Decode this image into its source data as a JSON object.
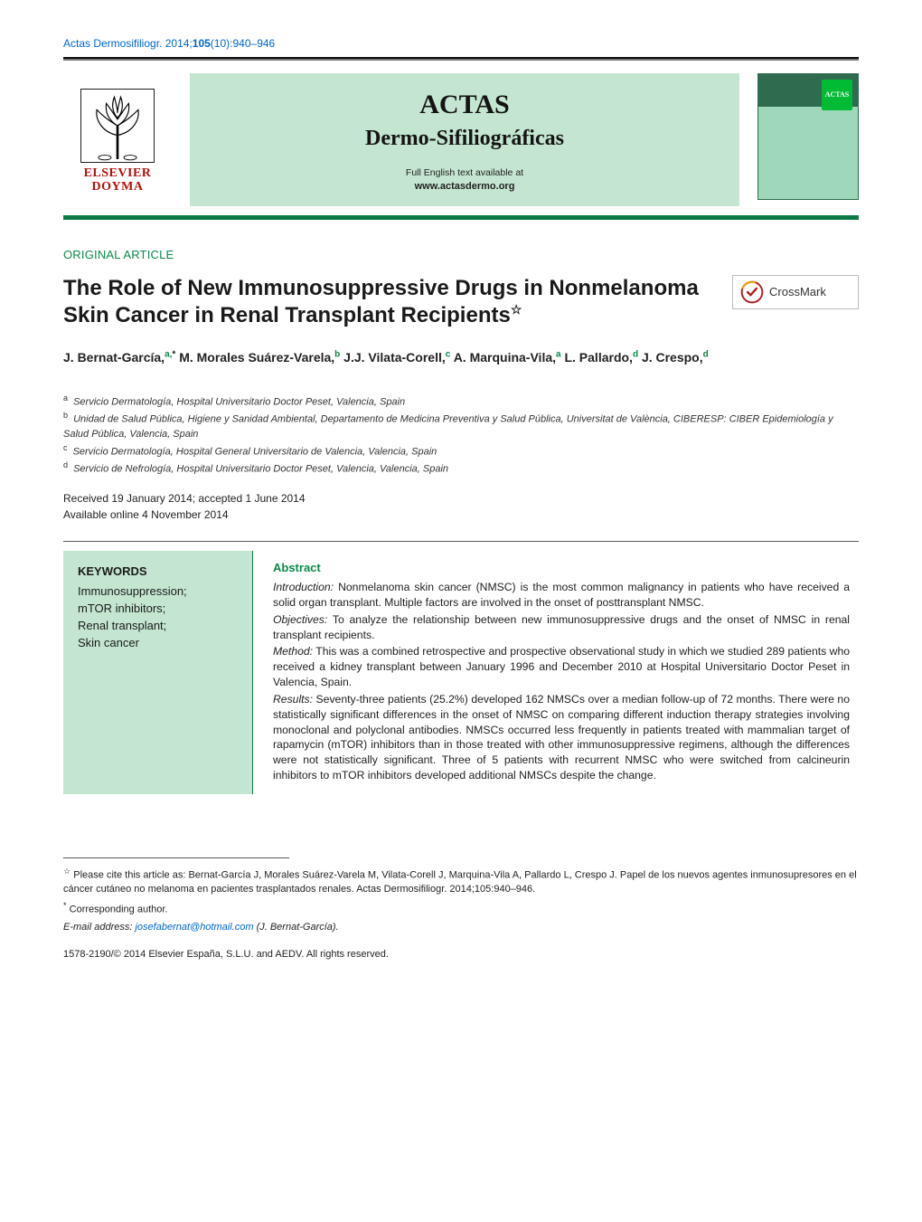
{
  "citation": {
    "journal_abbrev": "Actas Dermosifiliogr.",
    "year": "2014",
    "volume": "105",
    "issue": "10",
    "pages": "940–946",
    "link_color": "#0066cc"
  },
  "header": {
    "publisher_name_line1": "ELSEVIER",
    "publisher_name_line2": "DOYMA",
    "journal_title_line1": "ACTAS",
    "journal_title_line2": "Dermo-Sifiliográficas",
    "availability_note": "Full English text available at",
    "journal_url": "www.actasdermo.org",
    "band_bg_color": "#c4e6d0",
    "band_rule_color": "#0b7a44"
  },
  "article": {
    "section_label": "ORIGINAL ARTICLE",
    "section_color": "#0b8a4c",
    "title": "The Role of New Immunosuppressive Drugs in Nonmelanoma Skin Cancer in Renal Transplant Recipients",
    "title_footnote_mark": "☆",
    "crossmark_label": "CrossMark"
  },
  "authors": [
    {
      "name": "J. Bernat-García",
      "affil": "a",
      "corresponding": true
    },
    {
      "name": "M. Morales Suárez-Varela",
      "affil": "b",
      "corresponding": false
    },
    {
      "name": "J.J. Vilata-Corell",
      "affil": "c",
      "corresponding": false
    },
    {
      "name": "A. Marquina-Vila",
      "affil": "a",
      "corresponding": false
    },
    {
      "name": "L. Pallardo",
      "affil": "d",
      "corresponding": false
    },
    {
      "name": "J. Crespo",
      "affil": "d",
      "corresponding": false
    }
  ],
  "affiliations": {
    "a": "Servicio Dermatología, Hospital Universitario Doctor Peset, Valencia, Spain",
    "b": "Unidad de Salud Pública, Higiene y Sanidad Ambiental, Departamento de Medicina Preventiva y Salud Pública, Universitat de València, CIBERESP: CIBER Epidemiología y Salud Pública, Valencia, Spain",
    "c": "Servicio Dermatología, Hospital General Universitario de Valencia, Valencia, Spain",
    "d": "Servicio de Nefrología, Hospital Universitario Doctor Peset, Valencia, Valencia, Spain"
  },
  "dates": {
    "received_accepted": "Received 19 January 2014; accepted 1 June 2014",
    "available_online": "Available online 4 November 2014"
  },
  "keywords": {
    "heading": "KEYWORDS",
    "items": [
      "Immunosuppression;",
      "mTOR inhibitors;",
      "Renal transplant;",
      "Skin cancer"
    ],
    "card_bg": "#c4e6d0"
  },
  "abstract": {
    "heading": "Abstract",
    "sections": [
      {
        "label": "Introduction:",
        "text": "Nonmelanoma skin cancer (NMSC) is the most common malignancy in patients who have received a solid organ transplant. Multiple factors are involved in the onset of posttransplant NMSC."
      },
      {
        "label": "Objectives:",
        "text": "To analyze the relationship between new immunosuppressive drugs and the onset of NMSC in renal transplant recipients."
      },
      {
        "label": "Method:",
        "text": "This was a combined retrospective and prospective observational study in which we studied 289 patients who received a kidney transplant between January 1996 and December 2010 at Hospital Universitario Doctor Peset in Valencia, Spain."
      },
      {
        "label": "Results:",
        "text": "Seventy-three patients (25.2%) developed 162 NMSCs over a median follow-up of 72 months. There were no statistically significant differences in the onset of NMSC on comparing different induction therapy strategies involving monoclonal and polyclonal antibodies. NMSCs occurred less frequently in patients treated with mammalian target of rapamycin (mTOR) inhibitors than in those treated with other immunosuppressive regimens, although the differences were not statistically significant. Three of 5 patients with recurrent NMSC who were switched from calcineurin inhibitors to mTOR inhibitors developed additional NMSCs despite the change."
      }
    ]
  },
  "footnotes": {
    "cite_as": "Please cite this article as: Bernat-García J, Morales Suárez-Varela M, Vilata-Corell J, Marquina-Vila A, Pallardo L, Crespo J. Papel de los nuevos agentes inmunosupresores en el cáncer cutáneo no melanoma en pacientes trasplantados renales. Actas Dermosifiliogr. 2014;105:940–946.",
    "corresponding_label": "Corresponding author.",
    "email_label": "E-mail address:",
    "email": "josefabernat@hotmail.com",
    "email_author": "(J. Bernat-García)."
  },
  "copyright": "1578-2190/© 2014 Elsevier España, S.L.U. and AEDV. All rights reserved."
}
